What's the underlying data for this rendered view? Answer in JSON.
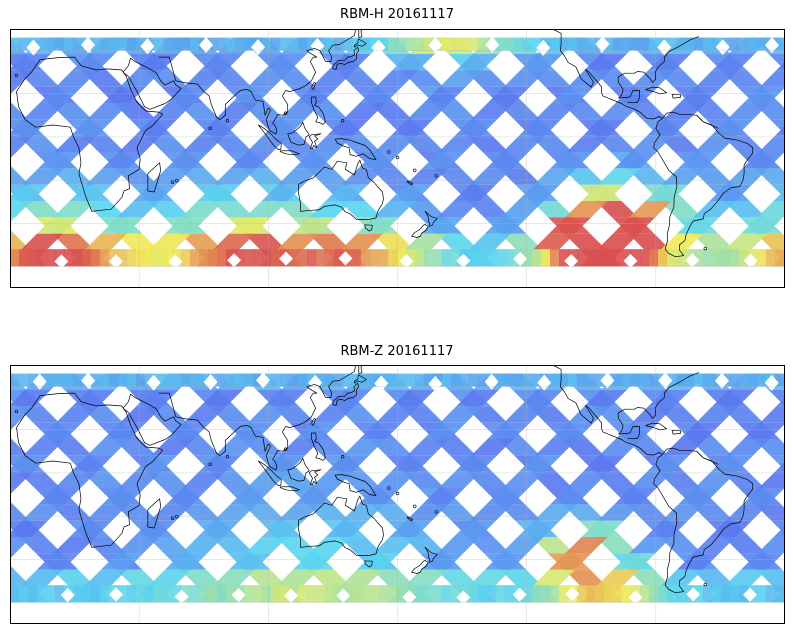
{
  "panels": [
    {
      "title": "RBM-H 20161117",
      "hot_regions": [
        {
          "lon": 265,
          "lat": -42,
          "strength": 1.0,
          "spread": 28
        },
        {
          "lon": 250,
          "lat": -52,
          "strength": 0.9,
          "spread": 22
        },
        {
          "lon": 0,
          "lat": -57,
          "strength": 0.75,
          "spread": 40
        },
        {
          "lon": 90,
          "lat": -57,
          "strength": 0.7,
          "spread": 40
        },
        {
          "lon": 185,
          "lat": 58,
          "strength": 0.7,
          "spread": 30
        },
        {
          "lon": 145,
          "lat": -55,
          "strength": 0.5,
          "spread": 30
        }
      ]
    },
    {
      "title": "RBM-Z 20161117",
      "hot_regions": [
        {
          "lon": 245,
          "lat": -36,
          "strength": 0.75,
          "spread": 18
        },
        {
          "lon": 255,
          "lat": -55,
          "strength": 0.45,
          "spread": 25
        },
        {
          "lon": 120,
          "lat": -57,
          "strength": 0.3,
          "spread": 60
        }
      ]
    }
  ],
  "colors": {
    "low": "#5b5bf0",
    "mid": "#5ad6f0",
    "high": "#d95050"
  },
  "map_extent": {
    "lon_min": -20,
    "lon_max": 340,
    "lat_min": -70,
    "lat_max": 50
  }
}
